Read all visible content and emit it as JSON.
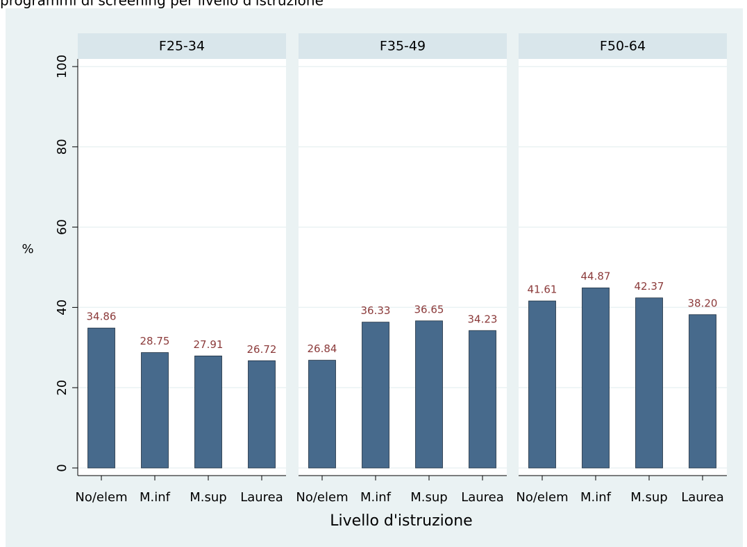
{
  "page": {
    "title": "programmi di screening per livello d'istruzione",
    "ylabel": "%",
    "xlabel": "Livello d'istruzione"
  },
  "chart_data": [
    {
      "type": "bar",
      "title": "F25-34",
      "categories": [
        "No/elem",
        "M.inf",
        "M.sup",
        "Laurea"
      ],
      "values": [
        34.86,
        28.75,
        27.91,
        26.72
      ],
      "value_labels": [
        "34.86",
        "28.75",
        "27.91",
        "26.72"
      ],
      "color": "#476a8c",
      "ylim": [
        0,
        100
      ],
      "yticks": [
        0,
        20,
        40,
        60,
        80,
        100
      ],
      "grid": true
    },
    {
      "type": "bar",
      "title": "F35-49",
      "categories": [
        "No/elem",
        "M.inf",
        "M.sup",
        "Laurea"
      ],
      "values": [
        26.84,
        36.33,
        36.65,
        34.23
      ],
      "value_labels": [
        "26.84",
        "36.33",
        "36.65",
        "34.23"
      ],
      "color": "#476a8c",
      "ylim": [
        0,
        100
      ],
      "yticks": [
        0,
        20,
        40,
        60,
        80,
        100
      ],
      "grid": true
    },
    {
      "type": "bar",
      "title": "F50-64",
      "categories": [
        "No/elem",
        "M.inf",
        "M.sup",
        "Laurea"
      ],
      "values": [
        41.61,
        44.87,
        42.37,
        38.2
      ],
      "value_labels": [
        "41.61",
        "44.87",
        "42.37",
        "38.20"
      ],
      "color": "#476a8c",
      "ylim": [
        0,
        100
      ],
      "yticks": [
        0,
        20,
        40,
        60,
        80,
        100
      ],
      "grid": true
    }
  ]
}
